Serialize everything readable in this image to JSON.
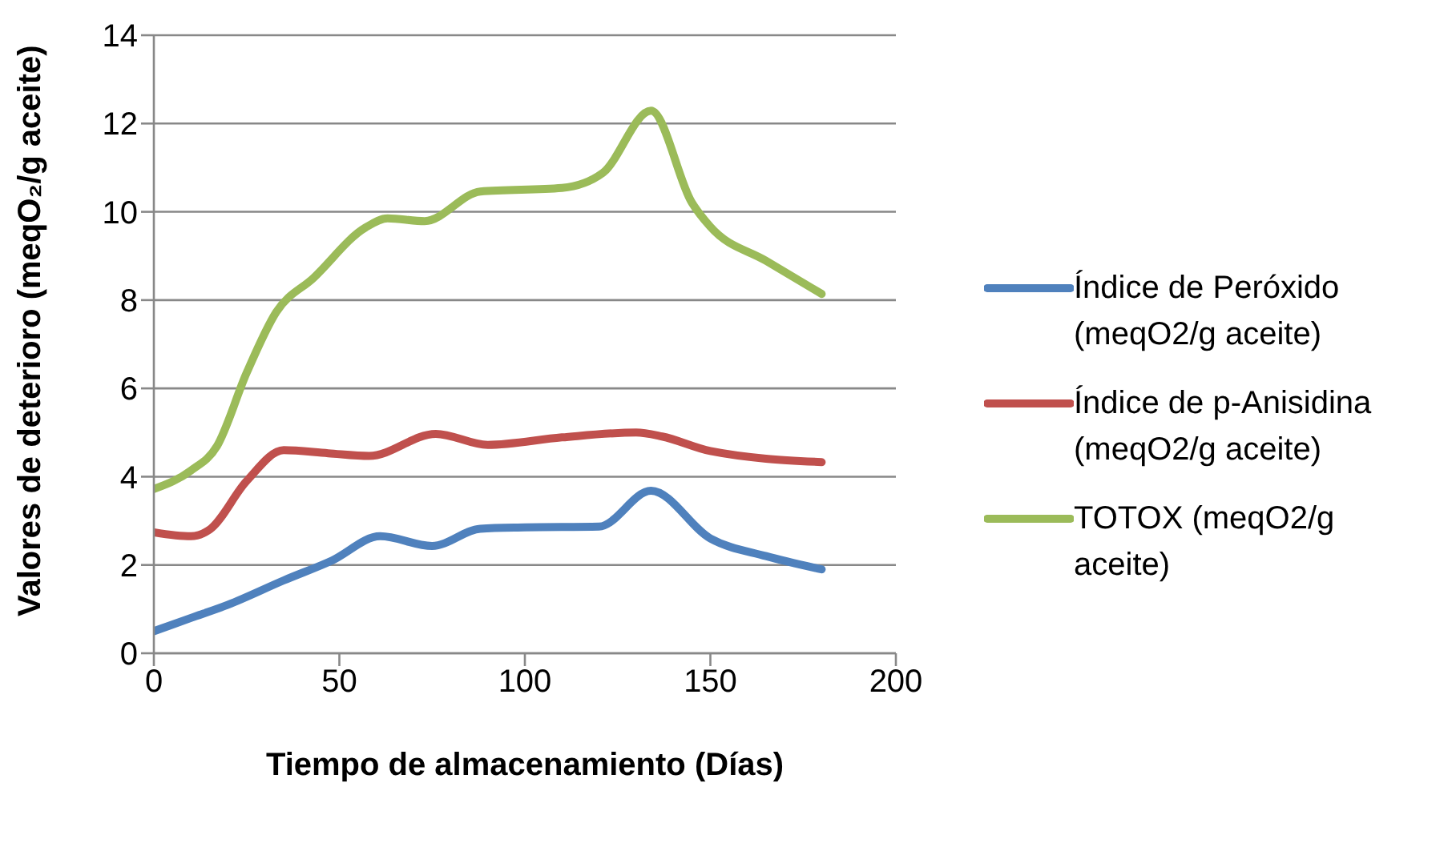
{
  "chart_data": {
    "type": "line",
    "xlabel": "Tiempo de almacenamiento (Días)",
    "ylabel": "Valores de deterioro (meqO₂/g aceite)",
    "xlim": [
      0,
      200
    ],
    "xticks": [
      0,
      50,
      100,
      150,
      200
    ],
    "ylim": [
      0,
      14
    ],
    "yticks": [
      0,
      2,
      4,
      6,
      8,
      10,
      12,
      14
    ],
    "grid": "y",
    "legend": "right",
    "marker": "none",
    "line_style": "solid",
    "series": [
      {
        "name": "Índice de Peróxido (meqO2/g aceite)",
        "color": "#4f81bd",
        "x": [
          0,
          10,
          20,
          35,
          48,
          61,
          75,
          88,
          100,
          120,
          134,
          150,
          165,
          180
        ],
        "values": [
          0.5,
          0.8,
          1.1,
          1.65,
          2.1,
          2.65,
          2.43,
          2.82,
          2.85,
          2.87,
          3.68,
          2.6,
          2.2,
          1.9
        ]
      },
      {
        "name": "Índice de p-Anisidina (meqO2/g aceite)",
        "color": "#c0504d",
        "x": [
          0,
          10,
          15,
          25,
          35,
          47,
          58,
          76,
          90,
          110,
          130,
          137,
          150,
          180
        ],
        "values": [
          2.74,
          2.65,
          2.8,
          3.9,
          4.6,
          4.53,
          4.47,
          4.97,
          4.72,
          4.89,
          5.0,
          4.91,
          4.58,
          4.33
        ]
      },
      {
        "name": "TOTOX (meqO2/g aceite)",
        "color": "#9bbb59",
        "x": [
          0,
          10,
          17,
          25,
          33,
          43,
          57,
          63,
          73,
          88,
          110,
          121,
          134,
          145,
          150,
          165,
          180
        ],
        "values": [
          3.72,
          4.14,
          4.69,
          6.35,
          7.73,
          8.5,
          9.64,
          9.85,
          9.79,
          10.46,
          10.54,
          10.88,
          12.29,
          10.21,
          9.66,
          8.89,
          8.14
        ]
      }
    ]
  }
}
